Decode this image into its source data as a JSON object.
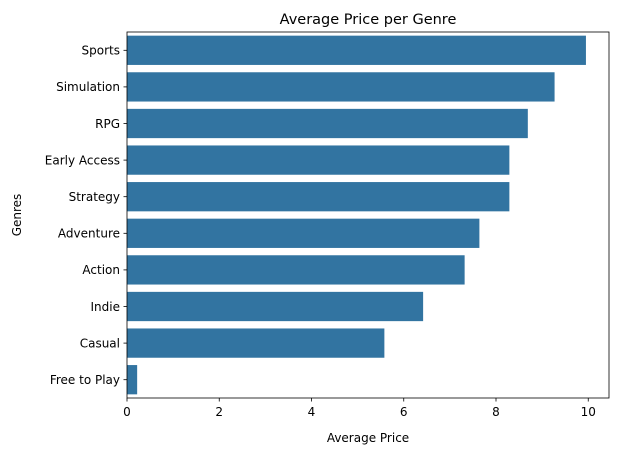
{
  "chart_data": {
    "type": "bar",
    "orientation": "horizontal",
    "title": "Average Price per Genre",
    "xlabel": "Average Price",
    "ylabel": "Genres",
    "categories": [
      "Sports",
      "Simulation",
      "RPG",
      "Early Access",
      "Strategy",
      "Adventure",
      "Action",
      "Indie",
      "Casual",
      "Free to Play"
    ],
    "values": [
      9.95,
      9.27,
      8.69,
      8.29,
      8.29,
      7.64,
      7.32,
      6.42,
      5.58,
      0.22
    ],
    "xlim": [
      0,
      10.45
    ],
    "xticks": [
      0,
      2,
      4,
      6,
      8,
      10
    ],
    "grid": false,
    "bar_color": "#3274a1"
  }
}
